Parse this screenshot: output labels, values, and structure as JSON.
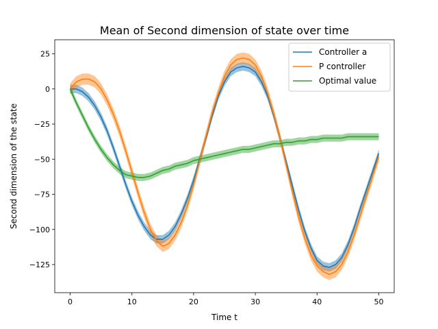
{
  "chart_data": {
    "type": "line",
    "title": "Mean of Second dimension of state over time",
    "xlabel": "Time t",
    "ylabel": "Second dimension of the state",
    "xlim": [
      -2.5,
      52.5
    ],
    "ylim": [
      -145,
      35
    ],
    "xticks": [
      0,
      10,
      20,
      30,
      40,
      50
    ],
    "yticks": [
      25,
      0,
      -25,
      -50,
      -75,
      -100,
      -125
    ],
    "grid": false,
    "legend_position": "top-right",
    "series": [
      {
        "name": "Controller a",
        "color": "#1f77b4",
        "x": [
          0,
          1,
          2,
          3,
          4,
          5,
          6,
          7,
          8,
          9,
          10,
          11,
          12,
          13,
          14,
          15,
          16,
          17,
          18,
          19,
          20,
          21,
          22,
          23,
          24,
          25,
          26,
          27,
          28,
          29,
          30,
          31,
          32,
          33,
          34,
          35,
          36,
          37,
          38,
          39,
          40,
          41,
          42,
          43,
          44,
          45,
          46,
          47,
          48,
          49,
          50
        ],
        "y": [
          0,
          0,
          -2,
          -6,
          -12,
          -20,
          -30,
          -42,
          -55,
          -68,
          -80,
          -90,
          -98,
          -104,
          -107,
          -107,
          -104,
          -98,
          -89,
          -78,
          -65,
          -50,
          -35,
          -19,
          -5,
          5,
          12,
          15,
          16,
          15,
          12,
          5,
          -5,
          -19,
          -35,
          -52,
          -69,
          -86,
          -101,
          -113,
          -122,
          -126,
          -127,
          -125,
          -120,
          -111,
          -99,
          -85,
          -72,
          -59,
          -46
        ],
        "band": 3
      },
      {
        "name": "P controller",
        "color": "#ff7f0e",
        "x": [
          0,
          1,
          2,
          3,
          4,
          5,
          6,
          7,
          8,
          9,
          10,
          11,
          12,
          13,
          14,
          15,
          16,
          17,
          18,
          19,
          20,
          21,
          22,
          23,
          24,
          25,
          26,
          27,
          28,
          29,
          30,
          31,
          32,
          33,
          34,
          35,
          36,
          37,
          38,
          39,
          40,
          41,
          42,
          43,
          44,
          45,
          46,
          47,
          48,
          49,
          50
        ],
        "y": [
          0,
          5,
          7,
          7,
          5,
          0,
          -8,
          -18,
          -30,
          -44,
          -59,
          -74,
          -88,
          -100,
          -108,
          -112,
          -110,
          -104,
          -95,
          -83,
          -68,
          -51,
          -34,
          -17,
          -3,
          9,
          17,
          21,
          22,
          21,
          17,
          9,
          -3,
          -18,
          -35,
          -54,
          -73,
          -91,
          -106,
          -118,
          -126,
          -130,
          -132,
          -130,
          -125,
          -116,
          -104,
          -90,
          -76,
          -62,
          -48
        ],
        "band": 4
      },
      {
        "name": "Optimal value",
        "color": "#2ca02c",
        "x": [
          0,
          1,
          2,
          3,
          4,
          5,
          6,
          7,
          8,
          9,
          10,
          11,
          12,
          13,
          14,
          15,
          16,
          17,
          18,
          19,
          20,
          21,
          22,
          23,
          24,
          25,
          26,
          27,
          28,
          29,
          30,
          31,
          32,
          33,
          34,
          35,
          36,
          37,
          38,
          39,
          40,
          41,
          42,
          43,
          44,
          45,
          46,
          47,
          48,
          49,
          50
        ],
        "y": [
          0,
          -10,
          -19,
          -28,
          -36,
          -43,
          -49,
          -54,
          -58,
          -61,
          -62,
          -63,
          -63,
          -62,
          -60,
          -58,
          -57,
          -55,
          -54,
          -53,
          -51,
          -50,
          -49,
          -48,
          -47,
          -46,
          -45,
          -44,
          -43,
          -43,
          -42,
          -41,
          -40,
          -39,
          -39,
          -38,
          -38,
          -37,
          -37,
          -36,
          -36,
          -35,
          -35,
          -35,
          -35,
          -34,
          -34,
          -34,
          -34,
          -34,
          -34
        ],
        "band": 2.5
      }
    ]
  }
}
